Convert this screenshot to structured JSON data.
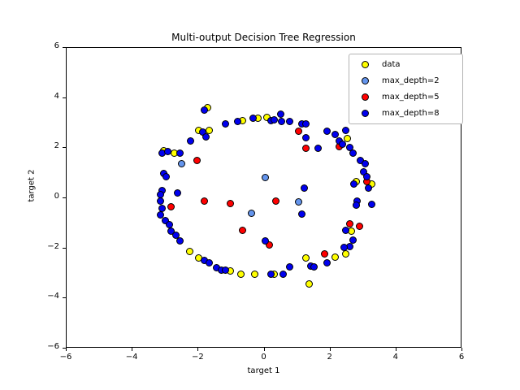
{
  "chart_data": {
    "type": "scatter",
    "title": "Multi-output Decision Tree Regression",
    "xlabel": "target 1",
    "ylabel": "target 2",
    "xlim": [
      -6,
      6
    ],
    "ylim": [
      -6,
      6
    ],
    "x_tick_values": [
      -6,
      -4,
      -2,
      0,
      2,
      4,
      6
    ],
    "x_tick_labels": [
      "−6",
      "−4",
      "−2",
      "0",
      "2",
      "4",
      "6"
    ],
    "y_tick_values": [
      -6,
      -4,
      -2,
      0,
      2,
      4,
      6
    ],
    "y_tick_labels": [
      "−6",
      "−4",
      "−2",
      "0",
      "2",
      "4",
      "6"
    ],
    "grid": false,
    "legend_position": "upper right",
    "marker_edge_color": "#000000",
    "axis_color": "#000000",
    "background_color": "#ffffff",
    "series": [
      {
        "name": "data",
        "color": "#ffff00",
        "points": [
          [
            -1.96,
            2.69
          ],
          [
            -1.66,
            2.66
          ],
          [
            -1.69,
            3.57
          ],
          [
            -0.65,
            3.08
          ],
          [
            -0.18,
            3.15
          ],
          [
            0.11,
            3.18
          ],
          [
            -3.02,
            1.85
          ],
          [
            -2.72,
            1.78
          ],
          [
            2.53,
            2.34
          ],
          [
            2.8,
            0.62
          ],
          [
            3.27,
            0.55
          ],
          [
            -2.25,
            -2.17
          ],
          [
            -1.96,
            -2.43
          ],
          [
            -1.02,
            -2.92
          ],
          [
            -0.68,
            -3.05
          ],
          [
            -0.28,
            -3.08
          ],
          [
            0.33,
            -3.08
          ],
          [
            1.37,
            -3.44
          ],
          [
            1.29,
            -2.43
          ],
          [
            2.16,
            -2.37
          ],
          [
            2.48,
            -2.27
          ],
          [
            2.67,
            -1.36
          ]
        ]
      },
      {
        "name": "max_depth=2",
        "color": "#6495ed",
        "points": [
          [
            -2.5,
            1.33
          ],
          [
            0.06,
            0.81
          ],
          [
            -0.36,
            -0.62
          ],
          [
            1.07,
            -0.19
          ]
        ]
      },
      {
        "name": "max_depth=5",
        "color": "#ff0000",
        "points": [
          [
            -2.01,
            1.46
          ],
          [
            -2.8,
            -0.36
          ],
          [
            -1.79,
            -0.13
          ],
          [
            -1.02,
            -0.23
          ],
          [
            0.38,
            -0.13
          ],
          [
            1.07,
            2.63
          ],
          [
            1.29,
            1.95
          ],
          [
            2.28,
            2.04
          ],
          [
            3.12,
            0.62
          ],
          [
            -0.65,
            -1.3
          ],
          [
            0.18,
            -1.91
          ],
          [
            1.86,
            -2.27
          ],
          [
            2.6,
            -1.04
          ],
          [
            2.9,
            -1.14
          ]
        ]
      },
      {
        "name": "max_depth=8",
        "color": "#0000ee",
        "points": [
          [
            -1.79,
            3.5
          ],
          [
            -1.15,
            2.92
          ],
          [
            -0.78,
            3.02
          ],
          [
            -0.33,
            3.15
          ],
          [
            0.21,
            3.08
          ],
          [
            0.33,
            3.11
          ],
          [
            0.51,
            3.31
          ],
          [
            0.55,
            3.02
          ],
          [
            0.8,
            3.02
          ],
          [
            1.17,
            2.95
          ],
          [
            1.29,
            2.92
          ],
          [
            1.93,
            2.63
          ],
          [
            2.16,
            2.5
          ],
          [
            2.48,
            2.69
          ],
          [
            2.3,
            2.27
          ],
          [
            2.4,
            2.14
          ],
          [
            2.6,
            1.98
          ],
          [
            2.72,
            1.78
          ],
          [
            2.94,
            1.46
          ],
          [
            3.09,
            1.33
          ],
          [
            3.04,
            1.01
          ],
          [
            3.12,
            0.84
          ],
          [
            2.73,
            0.55
          ],
          [
            3.17,
            0.36
          ],
          [
            2.83,
            -0.13
          ],
          [
            2.8,
            -0.32
          ],
          [
            3.27,
            -0.29
          ],
          [
            -1.84,
            2.6
          ],
          [
            -1.74,
            2.43
          ],
          [
            -2.21,
            2.24
          ],
          [
            -3.07,
            1.78
          ],
          [
            -2.9,
            1.82
          ],
          [
            -2.55,
            1.78
          ],
          [
            -3.02,
            0.97
          ],
          [
            -2.95,
            0.84
          ],
          [
            -2.62,
            0.19
          ],
          [
            -3.09,
            0.29
          ],
          [
            -3.12,
            0.1
          ],
          [
            -3.14,
            -0.13
          ],
          [
            -3.07,
            -0.45
          ],
          [
            -3.12,
            -0.71
          ],
          [
            -2.99,
            -0.94
          ],
          [
            -2.87,
            -1.1
          ],
          [
            -2.8,
            -1.36
          ],
          [
            -2.67,
            -1.52
          ],
          [
            -2.55,
            -1.75
          ],
          [
            -1.79,
            -2.5
          ],
          [
            -1.64,
            -2.6
          ],
          [
            -1.42,
            -2.79
          ],
          [
            -1.29,
            -2.89
          ],
          [
            -1.17,
            -2.89
          ],
          [
            0.06,
            -1.75
          ],
          [
            0.21,
            -3.08
          ],
          [
            0.58,
            -3.05
          ],
          [
            0.8,
            -2.76
          ],
          [
            1.42,
            -2.73
          ],
          [
            1.54,
            -2.76
          ],
          [
            1.91,
            -2.6
          ],
          [
            1.24,
            0.36
          ],
          [
            1.17,
            -0.65
          ],
          [
            1.29,
            2.37
          ],
          [
            1.66,
            1.95
          ],
          [
            2.48,
            -1.3
          ],
          [
            2.72,
            -1.69
          ],
          [
            2.6,
            -1.95
          ],
          [
            2.43,
            -2.01
          ]
        ]
      }
    ]
  }
}
